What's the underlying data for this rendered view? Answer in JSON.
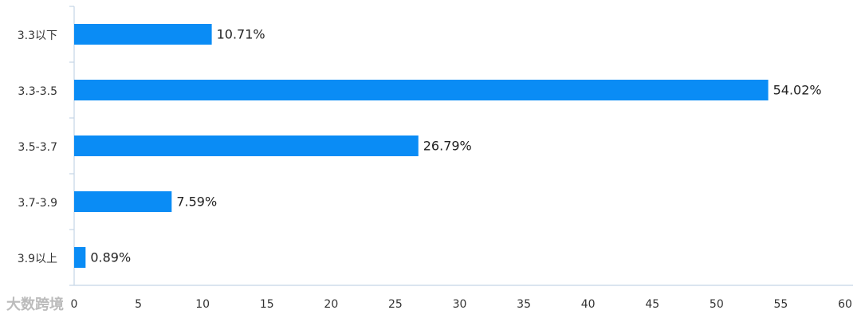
{
  "chart_data": {
    "type": "hbar",
    "categories": [
      "3.3以下",
      "3.3-3.5",
      "3.5-3.7",
      "3.7-3.9",
      "3.9以上"
    ],
    "values": [
      10.71,
      54.02,
      26.79,
      7.59,
      0.89
    ],
    "value_labels": [
      "10.71%",
      "54.02%",
      "26.79%",
      "7.59%",
      "0.89%"
    ],
    "color": "#0a8cf5",
    "xlim": [
      0,
      60
    ],
    "xticks": [
      0,
      5,
      10,
      15,
      20,
      25,
      30,
      35,
      40,
      45,
      50,
      55,
      60
    ],
    "grid": false
  },
  "watermark": "大数跨境"
}
